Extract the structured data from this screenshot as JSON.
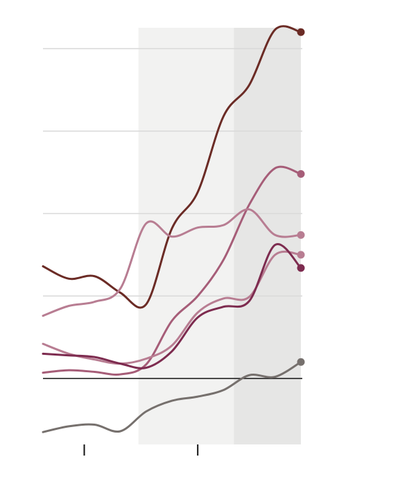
{
  "chart_data": {
    "type": "line",
    "title": "",
    "xlabel": "",
    "ylabel": "",
    "x": [
      0,
      1,
      2,
      3,
      4,
      5,
      6,
      7,
      8,
      9,
      10
    ],
    "xlim": [
      0,
      10
    ],
    "ylim": [
      -0.8,
      4.2
    ],
    "gridlines_y": [
      1,
      2,
      3,
      4
    ],
    "zero_line": 0,
    "x_ticks": [
      1.6,
      6.0
    ],
    "shaded_regions": [
      {
        "from": 3.7,
        "to": 7.4,
        "color": "#f2f2f1"
      },
      {
        "from": 7.4,
        "to": 10,
        "color": "#e6e6e5"
      }
    ],
    "series": [
      {
        "color": "#6b2b25",
        "values": [
          1.36,
          1.21,
          1.24,
          1.04,
          0.9,
          1.82,
          2.26,
          3.18,
          3.56,
          4.23,
          4.2
        ]
      },
      {
        "color": "#a65d78",
        "values": [
          0.07,
          0.1,
          0.08,
          0.05,
          0.17,
          0.7,
          1.0,
          1.44,
          2.11,
          2.55,
          2.48
        ]
      },
      {
        "color": "#b87d92",
        "values": [
          0.76,
          0.88,
          0.93,
          1.09,
          1.88,
          1.72,
          1.83,
          1.86,
          2.05,
          1.74,
          1.74
        ]
      },
      {
        "color": "#b87d92",
        "values": [
          0.42,
          0.3,
          0.23,
          0.18,
          0.24,
          0.4,
          0.8,
          0.97,
          0.99,
          1.5,
          1.5
        ]
      },
      {
        "color": "#7d2b4f",
        "values": [
          0.3,
          0.28,
          0.26,
          0.18,
          0.13,
          0.33,
          0.74,
          0.87,
          0.94,
          1.62,
          1.34
        ]
      },
      {
        "color": "#76706d",
        "values": [
          -0.65,
          -0.58,
          -0.56,
          -0.64,
          -0.4,
          -0.27,
          -0.22,
          -0.14,
          0.04,
          0.02,
          0.2
        ]
      }
    ]
  }
}
